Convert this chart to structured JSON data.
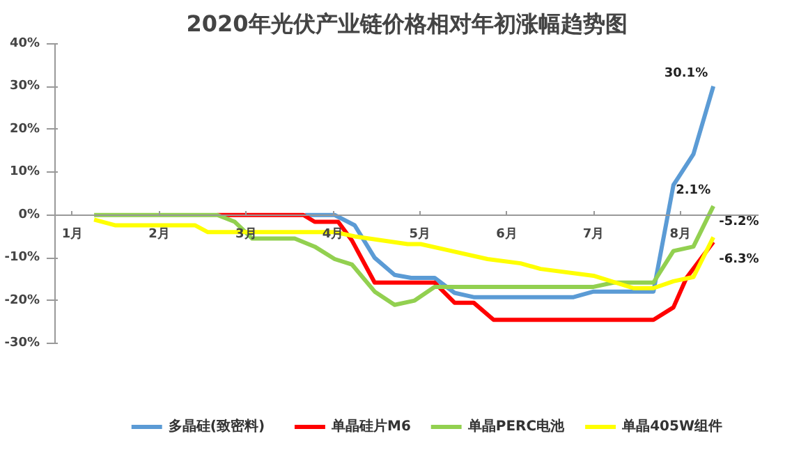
{
  "chart_data": {
    "type": "line",
    "title": "2020年光伏产业链价格相对年初涨幅趋势图",
    "xlim": [
      0.8,
      8.9
    ],
    "xticks": [
      {
        "value": 1,
        "label": "1月"
      },
      {
        "value": 2,
        "label": "2月"
      },
      {
        "value": 3,
        "label": "3月"
      },
      {
        "value": 4,
        "label": "4月"
      },
      {
        "value": 5,
        "label": "5月"
      },
      {
        "value": 6,
        "label": "6月"
      },
      {
        "value": 7,
        "label": "7月"
      },
      {
        "value": 8,
        "label": "8月"
      }
    ],
    "ylim": [
      -30,
      40
    ],
    "yticks": [
      {
        "value": 40,
        "label": "40%"
      },
      {
        "value": 30,
        "label": "30%"
      },
      {
        "value": 20,
        "label": "20%"
      },
      {
        "value": 10,
        "label": "10%"
      },
      {
        "value": 0,
        "label": "0%"
      },
      {
        "value": -10,
        "label": "-10%"
      },
      {
        "value": -20,
        "label": "-20%"
      },
      {
        "value": -30,
        "label": "-30%"
      }
    ],
    "grid": false,
    "legend": "bottom",
    "marker": "none",
    "line_style": "solid",
    "series": [
      {
        "name": "多晶硅(致密料)",
        "color": "#5b9bd5",
        "x": [
          3.68,
          4.02,
          4.25,
          4.48,
          4.71,
          4.9,
          5.17,
          5.4,
          5.62,
          6.77,
          7.0,
          7.69,
          7.92,
          8.15,
          8.38
        ],
        "values": [
          0,
          0,
          -2.4,
          -10,
          -14,
          -14.7,
          -14.7,
          -18.2,
          -19.2,
          -19.2,
          -17.9,
          -17.9,
          7,
          14.2,
          30.1
        ],
        "value_labels": [
          null,
          null,
          null,
          null,
          null,
          null,
          null,
          null,
          null,
          null,
          null,
          null,
          null,
          null,
          "30.1%"
        ]
      },
      {
        "name": "单晶硅片M6",
        "color": "#ff0000",
        "x": [
          2.67,
          3.66,
          3.79,
          4.06,
          4.22,
          4.48,
          5.17,
          5.4,
          5.62,
          5.85,
          7.69,
          7.92,
          8.07,
          8.38
        ],
        "values": [
          0,
          0,
          -1.6,
          -1.6,
          -6,
          -15.8,
          -15.8,
          -20.5,
          -20.5,
          -24.5,
          -24.5,
          -21.6,
          -14.7,
          -6.3
        ],
        "value_labels": [
          null,
          null,
          null,
          null,
          null,
          null,
          null,
          null,
          null,
          null,
          null,
          null,
          null,
          "-6.3%"
        ]
      },
      {
        "name": "单晶PERC电池",
        "color": "#92d050",
        "x": [
          1.25,
          2.67,
          2.87,
          3.07,
          3.56,
          3.79,
          4.02,
          4.22,
          4.48,
          4.71,
          4.94,
          5.17,
          7.0,
          7.23,
          7.69,
          7.92,
          8.15,
          8.38
        ],
        "values": [
          0,
          0,
          -1.6,
          -5.5,
          -5.5,
          -7.4,
          -10.3,
          -11.6,
          -17.9,
          -21,
          -20,
          -16.8,
          -16.8,
          -15.8,
          -15.8,
          -8.4,
          -7.4,
          2.1
        ],
        "value_labels": [
          null,
          null,
          null,
          null,
          null,
          null,
          null,
          null,
          null,
          null,
          null,
          null,
          null,
          null,
          null,
          null,
          null,
          "2.1%"
        ]
      },
      {
        "name": "单晶405W组件",
        "color": "#ffff00",
        "x": [
          1.25,
          1.49,
          2.41,
          2.56,
          4.02,
          4.25,
          4.86,
          5.01,
          5.32,
          5.78,
          6.16,
          6.39,
          7.0,
          7.46,
          7.69,
          7.92,
          8.15,
          8.38
        ],
        "values": [
          -1.1,
          -2.4,
          -2.4,
          -4,
          -4,
          -5,
          -6.8,
          -6.8,
          -8.2,
          -10.3,
          -11.3,
          -12.6,
          -14.2,
          -17.1,
          -17.1,
          -15.5,
          -14.5,
          -5.2
        ],
        "value_labels": [
          null,
          null,
          null,
          null,
          null,
          null,
          null,
          null,
          null,
          null,
          null,
          null,
          null,
          null,
          null,
          null,
          null,
          "-5.2%"
        ]
      }
    ]
  }
}
